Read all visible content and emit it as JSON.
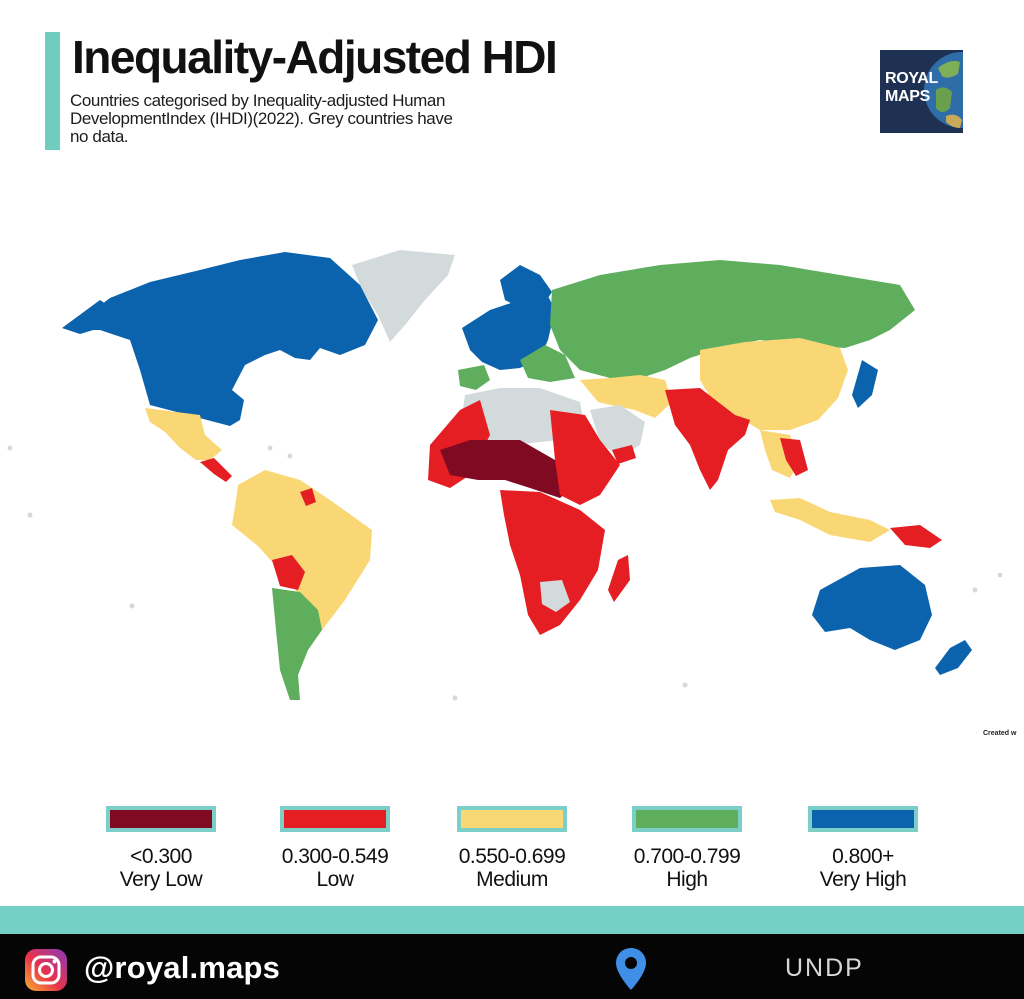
{
  "header": {
    "title": "Inequality-Adjusted HDI",
    "subtitle": "Countries categorised by Inequality-adjusted Human DevelopmentIndex (IHDI)(2022). Grey countries have no data.",
    "logo_line1": "ROYAL",
    "logo_line2": "MAPS"
  },
  "map": {
    "credit": "Created w"
  },
  "legend": [
    {
      "range": "<0.300",
      "label": "Very Low",
      "color": "#800a22"
    },
    {
      "range": "0.300-0.549",
      "label": "Low",
      "color": "#e41e22"
    },
    {
      "range": "0.550-0.699",
      "label": "Medium",
      "color": "#fad775"
    },
    {
      "range": "0.700-0.799",
      "label": "High",
      "color": "#5fae5e"
    },
    {
      "range": "0.800+",
      "label": "Very High",
      "color": "#0b63ae"
    }
  ],
  "colors": {
    "no_data": "#d3dadc",
    "accent": "#74cfc4",
    "footer_bg": "#050505"
  },
  "footer": {
    "handle": "@royal.maps",
    "source": "UNDP",
    "instagram_icon": "instagram-icon",
    "pin_icon": "location-pin-icon"
  }
}
